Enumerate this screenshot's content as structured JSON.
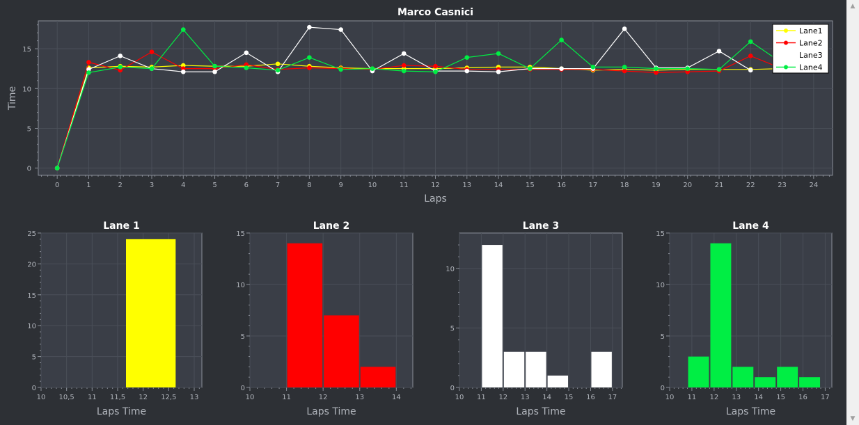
{
  "colors": {
    "background": "#2d3035",
    "plot_bg": "#3a3e47",
    "grid": "#4a4f58",
    "axis": "#8a8f99",
    "text": "#ffffff",
    "tick_text": "#b0b4bb",
    "Lane1": "#ffff00",
    "Lane2": "#ff0000",
    "Lane3": "#ffffff",
    "Lane4": "#00ee44"
  },
  "scrollbar": {
    "up_icon": "triangle-up-icon",
    "down_icon": "triangle-down-icon"
  },
  "chart_data": [
    {
      "type": "line",
      "title": "Marco Casnici",
      "xlabel": "Laps",
      "ylabel": "Time",
      "xlim": [
        -0.6,
        24.6
      ],
      "ylim": [
        -0.9,
        18.5
      ],
      "xticks": [
        0,
        1,
        2,
        3,
        4,
        5,
        6,
        7,
        8,
        9,
        10,
        11,
        12,
        13,
        14,
        15,
        16,
        17,
        18,
        19,
        20,
        21,
        22,
        23,
        24
      ],
      "yticks": [
        0,
        5,
        10,
        15
      ],
      "grid": true,
      "legend": "top-right",
      "x": [
        0,
        1,
        2,
        3,
        4,
        5,
        6,
        7,
        8,
        9,
        10,
        11,
        12,
        13,
        14,
        15,
        16,
        17,
        18,
        19,
        20,
        21,
        22,
        23
      ],
      "series": [
        {
          "name": "Lane1",
          "values": [
            0,
            12.6,
            12.8,
            12.7,
            12.9,
            12.8,
            12.8,
            13.1,
            12.8,
            12.6,
            12.5,
            12.5,
            12.5,
            12.6,
            12.7,
            12.7,
            12.5,
            12.3,
            12.4,
            12.3,
            12.4,
            12.4,
            12.4,
            12.5
          ]
        },
        {
          "name": "Lane2",
          "values": [
            0,
            13.3,
            12.3,
            14.6,
            12.5,
            12.5,
            13.0,
            12.4,
            12.6,
            12.5,
            12.4,
            12.9,
            12.8,
            12.4,
            12.4,
            12.4,
            12.4,
            12.4,
            12.2,
            12.0,
            12.1,
            12.2,
            14.1,
            12.5
          ]
        },
        {
          "name": "Lane3",
          "values": [
            0,
            12.4,
            14.1,
            12.5,
            12.1,
            12.1,
            14.5,
            12.1,
            17.7,
            17.4,
            12.2,
            14.4,
            12.2,
            12.2,
            12.1,
            12.5,
            12.5,
            12.5,
            17.5,
            12.6,
            12.6,
            14.7,
            12.3,
            null
          ]
        },
        {
          "name": "Lane4",
          "values": [
            0,
            12.0,
            12.7,
            12.5,
            17.4,
            12.8,
            12.6,
            12.3,
            13.9,
            12.4,
            12.5,
            12.2,
            12.1,
            13.9,
            14.4,
            12.5,
            16.1,
            12.7,
            12.7,
            12.5,
            12.5,
            12.4,
            15.9,
            13.2
          ]
        }
      ]
    },
    {
      "type": "bar",
      "title": "Lane 1",
      "xlabel": "Laps Time",
      "color_key": "Lane1",
      "xlim": [
        10,
        13.15
      ],
      "ylim": [
        0,
        25
      ],
      "xticks": [
        "10",
        "10,5",
        "11",
        "11,5",
        "12",
        "12,5",
        "13"
      ],
      "xtick_values": [
        10,
        10.5,
        11,
        11.5,
        12,
        12.5,
        13
      ],
      "yticks": [
        0,
        5,
        10,
        15,
        20,
        25
      ],
      "bins": [
        {
          "from": 11.65,
          "to": 12.65,
          "value": 24
        }
      ]
    },
    {
      "type": "bar",
      "title": "Lane 2",
      "xlabel": "Laps Time",
      "color_key": "Lane2",
      "xlim": [
        10,
        14.45
      ],
      "ylim": [
        0,
        15
      ],
      "xticks": [
        "10",
        "11",
        "12",
        "13",
        "14"
      ],
      "xtick_values": [
        10,
        11,
        12,
        13,
        14
      ],
      "yticks": [
        0,
        5,
        10,
        15
      ],
      "bins": [
        {
          "from": 11.0,
          "to": 12.0,
          "value": 14
        },
        {
          "from": 12.0,
          "to": 13.0,
          "value": 7
        },
        {
          "from": 13.0,
          "to": 14.0,
          "value": 2
        }
      ]
    },
    {
      "type": "bar",
      "title": "Lane 3",
      "xlabel": "Laps Time",
      "color_key": "Lane3",
      "xlim": [
        10,
        17.45
      ],
      "ylim": [
        0,
        13
      ],
      "xticks": [
        "10",
        "11",
        "12",
        "13",
        "14",
        "15",
        "16",
        "17"
      ],
      "xtick_values": [
        10,
        11,
        12,
        13,
        14,
        15,
        16,
        17
      ],
      "yticks": [
        0,
        5,
        10
      ],
      "bins": [
        {
          "from": 11.0,
          "to": 12.0,
          "value": 12
        },
        {
          "from": 12.0,
          "to": 13.0,
          "value": 3
        },
        {
          "from": 13.0,
          "to": 14.0,
          "value": 3
        },
        {
          "from": 14.0,
          "to": 15.0,
          "value": 1
        },
        {
          "from": 16.0,
          "to": 17.0,
          "value": 3
        }
      ]
    },
    {
      "type": "bar",
      "title": "Lane 4",
      "xlabel": "Laps Time",
      "color_key": "Lane4",
      "xlim": [
        10,
        17.3
      ],
      "ylim": [
        0,
        15
      ],
      "xticks": [
        "10",
        "11",
        "12",
        "13",
        "14",
        "15",
        "16",
        "17"
      ],
      "xtick_values": [
        10,
        11,
        12,
        13,
        14,
        15,
        16,
        17
      ],
      "yticks": [
        0,
        5,
        10,
        15
      ],
      "bins": [
        {
          "from": 10.8,
          "to": 11.8,
          "value": 3
        },
        {
          "from": 11.8,
          "to": 12.8,
          "value": 14
        },
        {
          "from": 12.8,
          "to": 13.8,
          "value": 2
        },
        {
          "from": 13.8,
          "to": 14.8,
          "value": 1
        },
        {
          "from": 14.8,
          "to": 15.8,
          "value": 2
        },
        {
          "from": 15.8,
          "to": 16.8,
          "value": 1
        }
      ]
    }
  ]
}
